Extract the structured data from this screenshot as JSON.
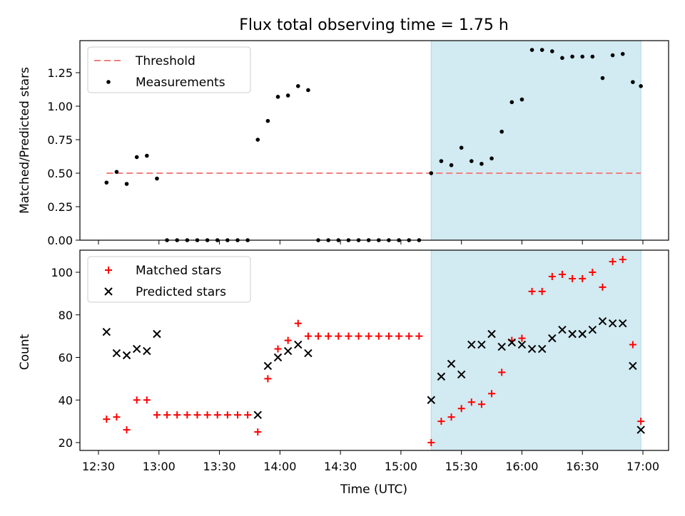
{
  "chart_data": {
    "title": "Flux total observing time = 1.75 h",
    "xlabel": "Time (UTC)",
    "x_unit": "time of day (UTC), HH:MM",
    "x_ticks": [
      "12:30",
      "13:00",
      "13:30",
      "14:00",
      "14:30",
      "15:00",
      "15:30",
      "16:00",
      "16:30",
      "17:00"
    ],
    "shaded_interval": {
      "from": "15:15",
      "to": "16:59",
      "color": "#add8e6"
    },
    "panels": [
      {
        "type": "scatter",
        "ylabel": "Matched/Predicted stars",
        "ylim": [
          0,
          1.5
        ],
        "y_ticks": [
          "0.00",
          "0.25",
          "0.50",
          "0.75",
          "1.00",
          "1.25"
        ],
        "legend_placement": "top-left",
        "legend": [
          "Threshold",
          "Measurements"
        ],
        "threshold": {
          "name": "Threshold",
          "value": 0.5,
          "from": "12:34",
          "to": "16:59",
          "color": "#f08080"
        },
        "series": [
          {
            "name": "Measurements",
            "color": "#000000",
            "marker": "dot",
            "points": [
              [
                "12:34",
                0.43
              ],
              [
                "12:39",
                0.51
              ],
              [
                "12:44",
                0.42
              ],
              [
                "12:49",
                0.62
              ],
              [
                "12:54",
                0.63
              ],
              [
                "12:59",
                0.46
              ],
              [
                "13:04",
                0.0
              ],
              [
                "13:09",
                0.0
              ],
              [
                "13:14",
                0.0
              ],
              [
                "13:19",
                0.0
              ],
              [
                "13:24",
                0.0
              ],
              [
                "13:29",
                0.0
              ],
              [
                "13:34",
                0.0
              ],
              [
                "13:39",
                0.0
              ],
              [
                "13:44",
                0.0
              ],
              [
                "13:49",
                0.75
              ],
              [
                "13:54",
                0.89
              ],
              [
                "13:59",
                1.07
              ],
              [
                "14:04",
                1.08
              ],
              [
                "14:09",
                1.15
              ],
              [
                "14:14",
                1.12
              ],
              [
                "14:19",
                0.0
              ],
              [
                "14:24",
                0.0
              ],
              [
                "14:29",
                0.0
              ],
              [
                "14:34",
                0.0
              ],
              [
                "14:39",
                0.0
              ],
              [
                "14:44",
                0.0
              ],
              [
                "14:49",
                0.0
              ],
              [
                "14:54",
                0.0
              ],
              [
                "14:59",
                0.0
              ],
              [
                "15:04",
                0.0
              ],
              [
                "15:09",
                0.0
              ],
              [
                "15:15",
                0.5
              ],
              [
                "15:20",
                0.59
              ],
              [
                "15:25",
                0.56
              ],
              [
                "15:30",
                0.69
              ],
              [
                "15:35",
                0.59
              ],
              [
                "15:40",
                0.57
              ],
              [
                "15:45",
                0.61
              ],
              [
                "15:50",
                0.81
              ],
              [
                "15:55",
                1.03
              ],
              [
                "16:00",
                1.05
              ],
              [
                "16:05",
                1.42
              ],
              [
                "16:10",
                1.42
              ],
              [
                "16:15",
                1.41
              ],
              [
                "16:20",
                1.36
              ],
              [
                "16:25",
                1.37
              ],
              [
                "16:30",
                1.37
              ],
              [
                "16:35",
                1.37
              ],
              [
                "16:40",
                1.21
              ],
              [
                "16:45",
                1.38
              ],
              [
                "16:50",
                1.39
              ],
              [
                "16:55",
                1.18
              ],
              [
                "16:59",
                1.15
              ]
            ]
          }
        ]
      },
      {
        "type": "scatter",
        "ylabel": "Count",
        "ylim": [
          15,
          110
        ],
        "y_ticks": [
          "20",
          "40",
          "60",
          "80",
          "100"
        ],
        "legend_placement": "top-left",
        "legend": [
          "Matched stars",
          "Predicted stars"
        ],
        "series": [
          {
            "name": "Matched stars",
            "color": "#ff0000",
            "marker": "plus",
            "points": [
              [
                "12:34",
                31
              ],
              [
                "12:39",
                32
              ],
              [
                "12:44",
                26
              ],
              [
                "12:49",
                40
              ],
              [
                "12:54",
                40
              ],
              [
                "12:59",
                33
              ],
              [
                "13:04",
                33
              ],
              [
                "13:09",
                33
              ],
              [
                "13:14",
                33
              ],
              [
                "13:19",
                33
              ],
              [
                "13:24",
                33
              ],
              [
                "13:29",
                33
              ],
              [
                "13:34",
                33
              ],
              [
                "13:39",
                33
              ],
              [
                "13:44",
                33
              ],
              [
                "13:49",
                25
              ],
              [
                "13:54",
                50
              ],
              [
                "13:59",
                64
              ],
              [
                "14:04",
                68
              ],
              [
                "14:09",
                76
              ],
              [
                "14:14",
                70
              ],
              [
                "14:19",
                70
              ],
              [
                "14:24",
                70
              ],
              [
                "14:29",
                70
              ],
              [
                "14:34",
                70
              ],
              [
                "14:39",
                70
              ],
              [
                "14:44",
                70
              ],
              [
                "14:49",
                70
              ],
              [
                "14:54",
                70
              ],
              [
                "14:59",
                70
              ],
              [
                "15:04",
                70
              ],
              [
                "15:09",
                70
              ],
              [
                "15:15",
                20
              ],
              [
                "15:20",
                30
              ],
              [
                "15:25",
                32
              ],
              [
                "15:30",
                36
              ],
              [
                "15:35",
                39
              ],
              [
                "15:40",
                38
              ],
              [
                "15:45",
                43
              ],
              [
                "15:50",
                53
              ],
              [
                "15:55",
                68
              ],
              [
                "16:00",
                69
              ],
              [
                "16:05",
                91
              ],
              [
                "16:10",
                91
              ],
              [
                "16:15",
                98
              ],
              [
                "16:20",
                99
              ],
              [
                "16:25",
                97
              ],
              [
                "16:30",
                97
              ],
              [
                "16:35",
                100
              ],
              [
                "16:40",
                93
              ],
              [
                "16:45",
                105
              ],
              [
                "16:50",
                106
              ],
              [
                "16:55",
                66
              ],
              [
                "16:59",
                30
              ]
            ]
          },
          {
            "name": "Predicted stars",
            "color": "#000000",
            "marker": "x",
            "points": [
              [
                "12:34",
                72
              ],
              [
                "12:39",
                62
              ],
              [
                "12:44",
                61
              ],
              [
                "12:49",
                64
              ],
              [
                "12:54",
                63
              ],
              [
                "12:59",
                71
              ],
              [
                "13:49",
                33
              ],
              [
                "13:54",
                56
              ],
              [
                "13:59",
                60
              ],
              [
                "14:04",
                63
              ],
              [
                "14:09",
                66
              ],
              [
                "14:14",
                62
              ],
              [
                "15:15",
                40
              ],
              [
                "15:20",
                51
              ],
              [
                "15:25",
                57
              ],
              [
                "15:30",
                52
              ],
              [
                "15:35",
                66
              ],
              [
                "15:40",
                66
              ],
              [
                "15:45",
                71
              ],
              [
                "15:50",
                65
              ],
              [
                "15:55",
                67
              ],
              [
                "16:00",
                66
              ],
              [
                "16:05",
                64
              ],
              [
                "16:10",
                64
              ],
              [
                "16:15",
                69
              ],
              [
                "16:20",
                73
              ],
              [
                "16:25",
                71
              ],
              [
                "16:30",
                71
              ],
              [
                "16:35",
                73
              ],
              [
                "16:40",
                77
              ],
              [
                "16:45",
                76
              ],
              [
                "16:50",
                76
              ],
              [
                "16:55",
                56
              ],
              [
                "16:59",
                26
              ]
            ]
          }
        ]
      }
    ]
  }
}
